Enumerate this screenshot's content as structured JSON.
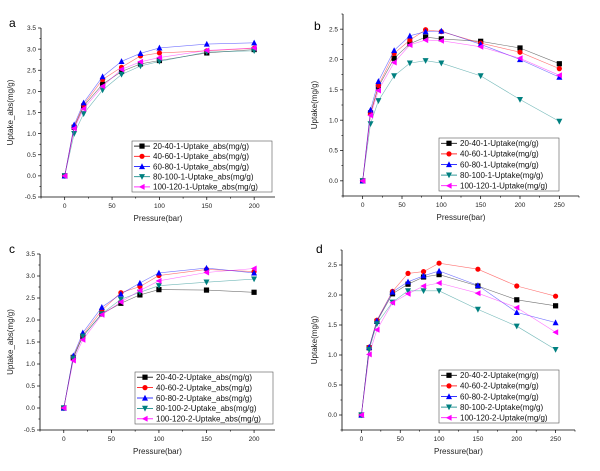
{
  "figure": {
    "panels_order": [
      "a",
      "b",
      "c",
      "d"
    ]
  },
  "chart_data": [
    {
      "panel": "a",
      "type": "line",
      "title": "",
      "xlabel": "Pressure(bar)",
      "ylabel": "Uptake_abs(mg/g)",
      "xlim": [
        -25,
        222
      ],
      "ylim": [
        -0.5,
        3.5
      ],
      "xticks": [
        0,
        50,
        100,
        150,
        200
      ],
      "yticks": [
        -0.5,
        0.0,
        0.5,
        1.0,
        1.5,
        2.0,
        2.5,
        3.0,
        3.5
      ],
      "ytick_labels": [
        "-0.5",
        "0.0",
        "0.5",
        "1.0",
        "1.5",
        "2.0",
        "2.5",
        "3.0",
        "3.5"
      ],
      "legend_position": "lower-right",
      "grid": false,
      "x": [
        0,
        10,
        20,
        40,
        60,
        80,
        100,
        150,
        200
      ],
      "series": [
        {
          "name": "20-40-1-Uptake_abs(mg/g)",
          "color": "#000000",
          "marker": "square",
          "values": [
            0,
            1.15,
            1.65,
            2.17,
            2.47,
            2.65,
            2.73,
            2.91,
            2.99
          ]
        },
        {
          "name": "40-60-1-Uptake_abs(mg/g)",
          "color": "#ff0000",
          "marker": "circle",
          "values": [
            0,
            1.17,
            1.68,
            2.28,
            2.57,
            2.84,
            2.91,
            2.96,
            3.02
          ]
        },
        {
          "name": "60-80-1-Uptake_abs(mg/g)",
          "color": "#0000ff",
          "marker": "triangle-up",
          "values": [
            0,
            1.21,
            1.73,
            2.35,
            2.71,
            2.9,
            3.03,
            3.12,
            3.15
          ]
        },
        {
          "name": "80-100-1-Uptake_abs(mg/g)",
          "color": "#008080",
          "marker": "triangle-down",
          "values": [
            0,
            1.0,
            1.47,
            2.03,
            2.4,
            2.6,
            2.71,
            2.93,
            2.96
          ]
        },
        {
          "name": "100-120-1-Uptake_abs(mg/g)",
          "color": "#ff00ff",
          "marker": "triangle-left",
          "values": [
            0,
            1.12,
            1.59,
            2.12,
            2.52,
            2.7,
            2.8,
            2.97,
            3.03
          ]
        }
      ]
    },
    {
      "panel": "b",
      "type": "line",
      "title": "",
      "xlabel": "Pressure(bar)",
      "ylabel": "Uptake(mg/g)",
      "xlim": [
        -25,
        275
      ],
      "ylim": [
        -0.25,
        2.75
      ],
      "xticks": [
        0,
        50,
        100,
        150,
        200,
        250
      ],
      "yticks": [
        0.0,
        0.5,
        1.0,
        1.5,
        2.0,
        2.5
      ],
      "ytick_labels": [
        "0.0",
        "0.5",
        "1.0",
        "1.5",
        "2.0",
        "2.5"
      ],
      "legend_position": "lower-right",
      "grid": false,
      "x": [
        0,
        10,
        20,
        40,
        60,
        80,
        100,
        150,
        200,
        250
      ],
      "series": [
        {
          "name": "20-40-1-Uptake(mg/g)",
          "color": "#000000",
          "marker": "square",
          "values": [
            0,
            1.12,
            1.55,
            2.02,
            2.26,
            2.37,
            2.34,
            2.3,
            2.19,
            1.93
          ]
        },
        {
          "name": "40-60-1-Uptake(mg/g)",
          "color": "#ff0000",
          "marker": "circle",
          "values": [
            0,
            1.1,
            1.57,
            2.1,
            2.32,
            2.49,
            2.46,
            2.27,
            2.12,
            1.85
          ]
        },
        {
          "name": "60-80-1-Uptake(mg/g)",
          "color": "#0000ff",
          "marker": "triangle-up",
          "values": [
            0,
            1.17,
            1.64,
            2.15,
            2.39,
            2.46,
            2.47,
            2.25,
            2.0,
            1.71
          ]
        },
        {
          "name": "80-100-1-Uptake(mg/g)",
          "color": "#008080",
          "marker": "triangle-down",
          "values": [
            0,
            0.94,
            1.32,
            1.73,
            1.94,
            1.98,
            1.94,
            1.73,
            1.34,
            0.98
          ]
        },
        {
          "name": "100-120-1-Uptake(mg/g)",
          "color": "#ff00ff",
          "marker": "triangle-left",
          "values": [
            0,
            1.08,
            1.49,
            1.95,
            2.24,
            2.32,
            2.31,
            2.21,
            2.02,
            1.74
          ]
        }
      ]
    },
    {
      "panel": "c",
      "type": "line",
      "title": "",
      "xlabel": "Pressure(bar)",
      "ylabel": "Uptake_abs(mg/g)",
      "xlim": [
        -25,
        222
      ],
      "ylim": [
        -0.5,
        3.5
      ],
      "xticks": [
        0,
        50,
        100,
        150,
        200
      ],
      "yticks": [
        -0.5,
        0.0,
        0.5,
        1.0,
        1.5,
        2.0,
        2.5,
        3.0,
        3.5
      ],
      "ytick_labels": [
        "-0.5",
        "0.0",
        "0.5",
        "1.0",
        "1.5",
        "2.0",
        "2.5",
        "3.0",
        "3.5"
      ],
      "legend_position": "lower-right",
      "grid": false,
      "x": [
        0,
        10,
        20,
        40,
        60,
        80,
        100,
        150,
        200
      ],
      "series": [
        {
          "name": "20-40-2-Uptake_abs(mg/g)",
          "color": "#000000",
          "marker": "square",
          "values": [
            0,
            1.15,
            1.63,
            2.14,
            2.38,
            2.57,
            2.69,
            2.68,
            2.63
          ]
        },
        {
          "name": "40-60-2-Uptake_abs(mg/g)",
          "color": "#ff0000",
          "marker": "circle",
          "values": [
            0,
            1.16,
            1.66,
            2.22,
            2.62,
            2.76,
            3.01,
            3.15,
            3.1
          ]
        },
        {
          "name": "60-80-2-Uptake_abs(mg/g)",
          "color": "#0000ff",
          "marker": "triangle-up",
          "values": [
            0,
            1.19,
            1.71,
            2.29,
            2.59,
            2.84,
            3.07,
            3.18,
            3.07
          ]
        },
        {
          "name": "80-100-2-Uptake_abs(mg/g)",
          "color": "#008080",
          "marker": "triangle-down",
          "values": [
            0,
            1.13,
            1.63,
            2.14,
            2.47,
            2.63,
            2.78,
            2.86,
            2.93
          ]
        },
        {
          "name": "100-120-2-Uptake_abs(mg/g)",
          "color": "#ff00ff",
          "marker": "triangle-left",
          "values": [
            0,
            1.08,
            1.55,
            2.12,
            2.41,
            2.67,
            2.89,
            3.08,
            3.17
          ]
        }
      ]
    },
    {
      "panel": "d",
      "type": "line",
      "title": "",
      "xlabel": "Pressure(bar)",
      "ylabel": "Uptake(mg/g)",
      "xlim": [
        -25,
        275
      ],
      "ylim": [
        -0.25,
        2.75
      ],
      "xticks": [
        0,
        50,
        100,
        150,
        200,
        250
      ],
      "yticks": [
        0.0,
        0.5,
        1.0,
        1.5,
        2.0,
        2.5
      ],
      "ytick_labels": [
        "0.0",
        "0.5",
        "1.0",
        "1.5",
        "2.0",
        "2.5"
      ],
      "legend_position": "lower-right",
      "grid": false,
      "x": [
        0,
        10,
        20,
        40,
        60,
        80,
        100,
        150,
        200,
        250
      ],
      "series": [
        {
          "name": "20-40-2-Uptake(mg/g)",
          "color": "#000000",
          "marker": "square",
          "values": [
            0,
            1.12,
            1.56,
            2.02,
            2.18,
            2.3,
            2.34,
            2.15,
            1.92,
            1.82
          ]
        },
        {
          "name": "40-60-2-Uptake(mg/g)",
          "color": "#ff0000",
          "marker": "circle",
          "values": [
            0,
            1.13,
            1.58,
            2.06,
            2.36,
            2.39,
            2.53,
            2.43,
            2.15,
            1.98
          ]
        },
        {
          "name": "60-80-2-Uptake(mg/g)",
          "color": "#0000ff",
          "marker": "triangle-up",
          "values": [
            0,
            1.13,
            1.57,
            2.05,
            2.22,
            2.32,
            2.4,
            2.16,
            1.71,
            1.54
          ]
        },
        {
          "name": "80-100-2-Uptake(mg/g)",
          "color": "#008080",
          "marker": "triangle-down",
          "values": [
            0,
            1.09,
            1.52,
            1.88,
            2.07,
            2.07,
            2.07,
            1.76,
            1.48,
            1.09
          ]
        },
        {
          "name": "100-120-2-Uptake(mg/g)",
          "color": "#ff00ff",
          "marker": "triangle-left",
          "values": [
            0,
            1.01,
            1.42,
            1.87,
            2.02,
            2.15,
            2.2,
            2.03,
            1.79,
            1.38
          ]
        }
      ]
    }
  ]
}
